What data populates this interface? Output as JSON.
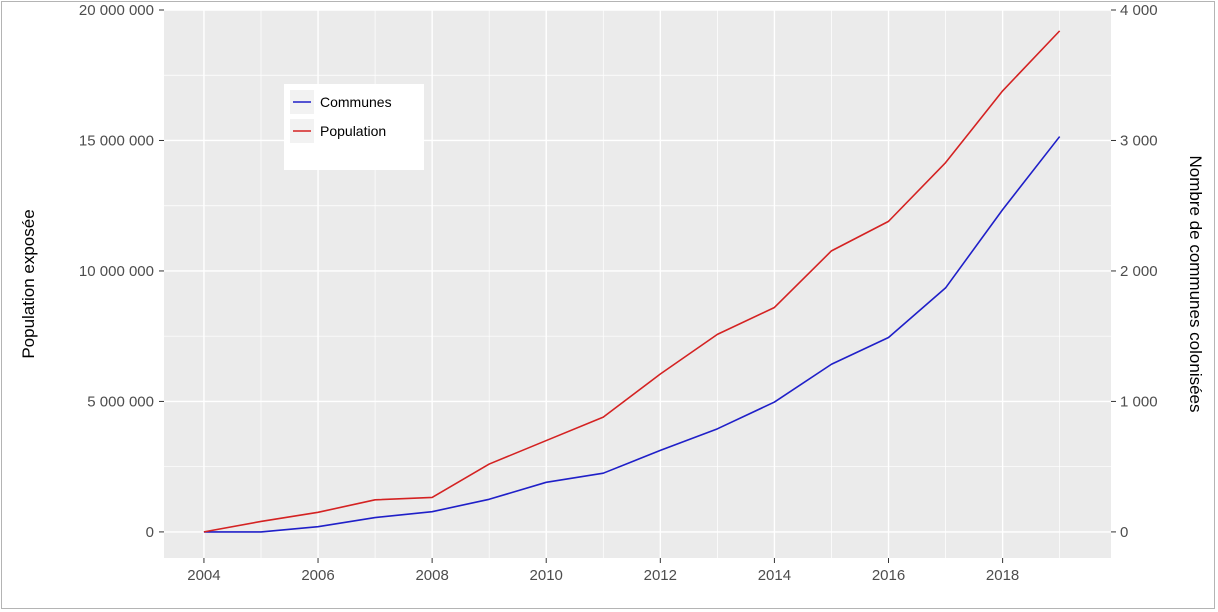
{
  "chart_data": {
    "type": "line",
    "x": [
      2004,
      2005,
      2006,
      2007,
      2008,
      2009,
      2010,
      2011,
      2012,
      2013,
      2014,
      2015,
      2016,
      2017,
      2018,
      2019
    ],
    "series": [
      {
        "name": "Communes",
        "axis": "right",
        "color": "#1f1fc8",
        "values": [
          0,
          0,
          40,
          110,
          155,
          250,
          380,
          450,
          625,
          790,
          995,
          1285,
          1490,
          1870,
          2470,
          3030
        ]
      },
      {
        "name": "Population",
        "axis": "left",
        "color": "#d42222",
        "values": [
          0,
          400000,
          750000,
          1230000,
          1320000,
          2600000,
          3500000,
          4400000,
          6050000,
          7570000,
          8600000,
          10770000,
          11900000,
          14150000,
          16900000,
          19200000
        ]
      }
    ],
    "xlim": [
      2003.3,
      2019.9
    ],
    "xticks": [
      2004,
      2006,
      2008,
      2010,
      2012,
      2014,
      2016,
      2018
    ],
    "xtick_labels": [
      "2004",
      "2006",
      "2008",
      "2010",
      "2012",
      "2014",
      "2016",
      "2018"
    ],
    "ylim_left": [
      -1000000,
      20000000
    ],
    "yticks_left": [
      0,
      5000000,
      10000000,
      15000000,
      20000000
    ],
    "ytick_labels_left": [
      "0",
      "5 000 000",
      "10 000 000",
      "15 000 000",
      "20 000 000"
    ],
    "ylim_right": [
      -200,
      4000
    ],
    "yticks_right": [
      0,
      1000,
      2000,
      3000,
      4000
    ],
    "ytick_labels_right": [
      "0",
      "1 000",
      "2 000",
      "3 000",
      "4 000"
    ],
    "ylabel": "Population exposée",
    "ylabel_right": "Nombre de communes colonisées",
    "xlabel": "",
    "title": "",
    "legend": {
      "position": "top-left",
      "entries": [
        "Communes",
        "Population"
      ]
    },
    "grid": true,
    "panel_background": "#ebebeb",
    "grid_color": "#ffffff"
  }
}
